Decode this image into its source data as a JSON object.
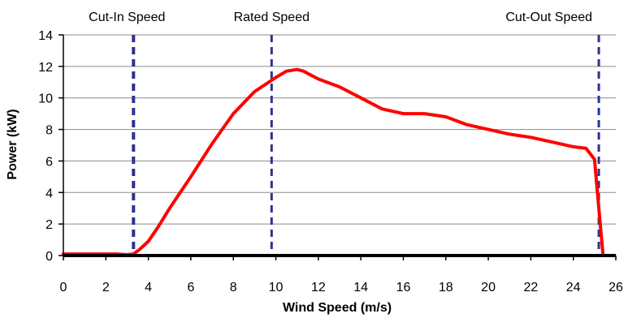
{
  "chart_data": {
    "type": "line",
    "title": "",
    "xlabel": "Wind Speed (m/s)",
    "ylabel": "Power (kW)",
    "xlim": [
      0,
      26
    ],
    "ylim": [
      0,
      14
    ],
    "x_ticks": [
      0,
      2,
      4,
      6,
      8,
      10,
      12,
      14,
      16,
      18,
      20,
      22,
      24,
      26
    ],
    "y_ticks": [
      0,
      2,
      4,
      6,
      8,
      10,
      12,
      14
    ],
    "grid": "horizontal",
    "legend": "none",
    "series": [
      {
        "color": "#ff0000",
        "x": [
          0,
          1,
          2,
          2.5,
          3,
          3.3,
          3.6,
          4,
          4.5,
          5,
          6,
          7,
          8,
          9,
          10,
          10.5,
          11,
          11.3,
          12,
          13,
          14,
          15,
          16,
          17,
          18,
          19,
          20,
          21,
          22,
          23,
          24,
          24.6,
          25,
          25.2,
          25.4
        ],
        "y": [
          0.1,
          0.1,
          0.1,
          0.1,
          0.05,
          0.1,
          0.4,
          0.9,
          1.9,
          3.0,
          5.0,
          7.1,
          9.0,
          10.4,
          11.3,
          11.7,
          11.8,
          11.7,
          11.2,
          10.7,
          10.0,
          9.3,
          9.0,
          9.0,
          8.8,
          8.3,
          8.0,
          7.7,
          7.5,
          7.2,
          6.9,
          6.8,
          6.1,
          3.0,
          0
        ]
      }
    ],
    "reference_lines": [
      {
        "label": "Cut-In Speed",
        "x": 3.3,
        "color": "#2e3192"
      },
      {
        "label": "Rated Speed",
        "x": 9.8,
        "color": "#2e3192"
      },
      {
        "label": "Cut-Out Speed",
        "x": 25.2,
        "color": "#2e3192"
      }
    ]
  }
}
